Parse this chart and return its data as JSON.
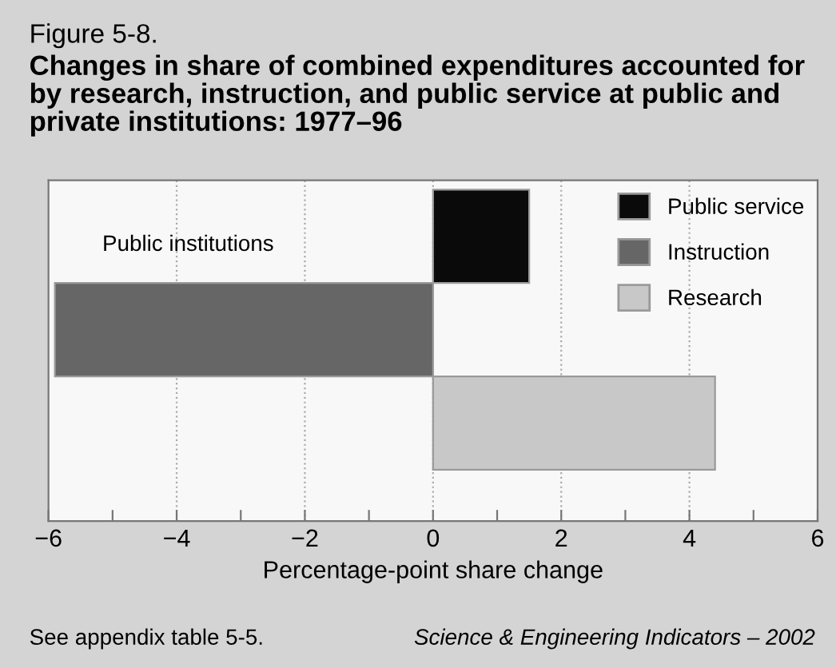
{
  "chart_data": {
    "type": "bar",
    "orientation": "horizontal",
    "stacked": true,
    "title": "Changes in share of combined expenditures accounted for by research, instruction, and public service at public and private institutions: 1977–96",
    "subtitle": "Figure 5-8.",
    "xlabel": "Percentage-point share change",
    "categories": [
      null,
      null,
      null
    ],
    "series": [
      {
        "name": "Public service",
        "color": "#0a0a0a",
        "values": [
          1.5,
          null,
          null
        ]
      },
      {
        "name": "Instruction",
        "color": "#666666",
        "values": [
          null,
          -5.9,
          null
        ]
      },
      {
        "name": "Research",
        "color": "#c8c8c8",
        "values": [
          null,
          null,
          4.4
        ]
      }
    ],
    "xlim": [
      -6,
      6
    ],
    "xticks": [
      {
        "value": -6,
        "label": "−6"
      },
      {
        "value": -5,
        "label": null
      },
      {
        "value": -4,
        "label": "−4"
      },
      {
        "value": -3,
        "label": null
      },
      {
        "value": -2,
        "label": "−2"
      },
      {
        "value": -1,
        "label": null
      },
      0,
      {
        "value": 1,
        "label": null
      },
      2,
      {
        "value": 3,
        "label": null
      },
      4,
      {
        "value": 5,
        "label": null
      },
      6
    ],
    "grid": "x",
    "legend": "top right",
    "tick_labels": "x",
    "annotations": [
      "Public institutions",
      "See appendix table 5-5.",
      "Science & Engineering Indicators – 2002"
    ]
  }
}
